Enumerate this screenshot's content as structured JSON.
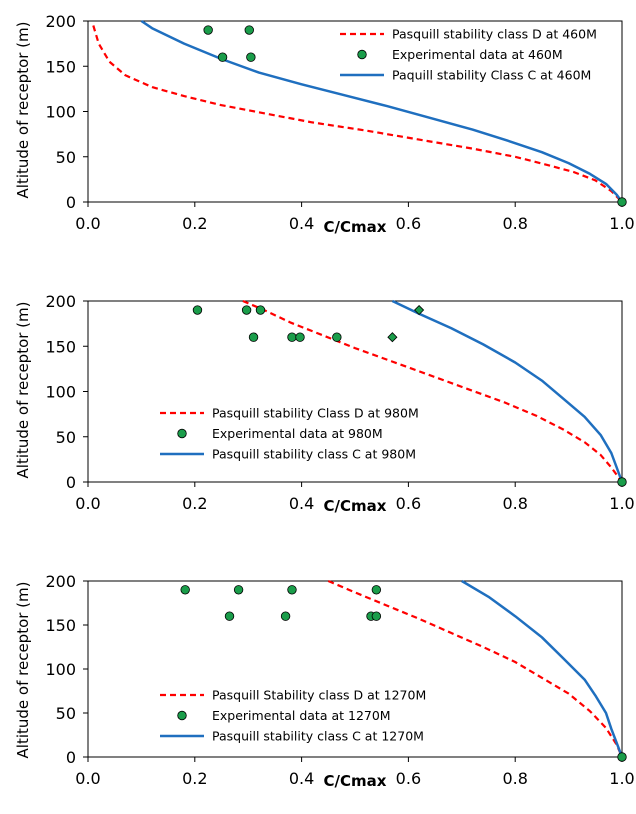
{
  "chart_data": [
    {
      "type": "line",
      "xlabel": "C/Cmax",
      "ylabel": "Altitude of receptor (m)",
      "xlim": [
        0.0,
        1.0
      ],
      "ylim": [
        0,
        200
      ],
      "xticks": [
        "0.0",
        "0.2",
        "0.4",
        "0.6",
        "0.8",
        "1.0"
      ],
      "yticks": [
        "0",
        "50",
        "100",
        "150",
        "200"
      ],
      "grid": false,
      "legend_position": "top-right",
      "series": [
        {
          "name": "Pasquill stability class D at 460M",
          "kind": "line",
          "color": "#ff0000",
          "dash": true,
          "x": [
            0.01,
            0.02,
            0.04,
            0.07,
            0.12,
            0.18,
            0.25,
            0.33,
            0.42,
            0.52,
            0.62,
            0.72,
            0.8,
            0.86,
            0.91,
            0.95,
            0.98,
            1.0
          ],
          "y": [
            195,
            175,
            155,
            140,
            127,
            117,
            107,
            98,
            88,
            79,
            69,
            59,
            50,
            41,
            33,
            24,
            12,
            0
          ]
        },
        {
          "name": "Experimental data at 460M",
          "kind": "scatter",
          "color": "#1a9d4a",
          "x": [
            0.225,
            0.302,
            0.252,
            0.305,
            1.0
          ],
          "y": [
            190,
            190,
            160,
            160,
            0
          ]
        },
        {
          "name": "Paquill stability Class C at 460M",
          "kind": "line",
          "color": "#1f6fbf",
          "dash": false,
          "x": [
            0.1,
            0.12,
            0.18,
            0.25,
            0.32,
            0.4,
            0.48,
            0.56,
            0.64,
            0.72,
            0.79,
            0.85,
            0.9,
            0.94,
            0.97,
            0.99,
            1.0
          ],
          "y": [
            200,
            192,
            175,
            158,
            143,
            130,
            118,
            106,
            93,
            80,
            67,
            55,
            43,
            31,
            20,
            8,
            0
          ]
        }
      ]
    },
    {
      "type": "line",
      "xlabel": "C/Cmax",
      "ylabel": "Altitude of receptor (m)",
      "xlim": [
        0.0,
        1.0
      ],
      "ylim": [
        0,
        200
      ],
      "xticks": [
        "0.0",
        "0.2",
        "0.4",
        "0.6",
        "0.8",
        "1.0"
      ],
      "yticks": [
        "0",
        "50",
        "100",
        "150",
        "200"
      ],
      "grid": false,
      "legend_position": "bottom-left",
      "series": [
        {
          "name": "Pasquill stability Class D at 980M",
          "kind": "line",
          "color": "#ff0000",
          "dash": true,
          "x": [
            0.29,
            0.33,
            0.38,
            0.44,
            0.5,
            0.57,
            0.64,
            0.71,
            0.78,
            0.84,
            0.89,
            0.93,
            0.96,
            0.98,
            0.99,
            1.0
          ],
          "y": [
            200,
            190,
            176,
            162,
            148,
            133,
            118,
            103,
            88,
            73,
            58,
            44,
            30,
            16,
            8,
            0
          ]
        },
        {
          "name": "Experimental data at 980M",
          "kind": "scatter",
          "color": "#1a9d4a",
          "x": [
            0.205,
            0.297,
            0.323,
            0.31,
            0.382,
            0.397,
            0.466,
            1.0
          ],
          "y": [
            190,
            190,
            190,
            160,
            160,
            160,
            160,
            0
          ]
        },
        {
          "name": "Experimental data at 980M (diamond)",
          "kind": "diamond",
          "color": "#1a9d4a",
          "x": [
            0.62,
            0.57
          ],
          "y": [
            190,
            160
          ]
        },
        {
          "name": "Pasquill stability class C at 980M",
          "kind": "line",
          "color": "#1f6fbf",
          "dash": false,
          "x": [
            0.57,
            0.62,
            0.68,
            0.74,
            0.8,
            0.85,
            0.89,
            0.93,
            0.96,
            0.98,
            0.99,
            1.0
          ],
          "y": [
            200,
            186,
            170,
            152,
            132,
            112,
            92,
            72,
            52,
            32,
            16,
            0
          ]
        }
      ]
    },
    {
      "type": "line",
      "xlabel": "C/Cmax",
      "ylabel": "Altitude of receptor (m)",
      "xlim": [
        0.0,
        1.0
      ],
      "ylim": [
        0,
        200
      ],
      "xticks": [
        "0.0",
        "0.2",
        "0.4",
        "0.6",
        "0.8",
        "1.0"
      ],
      "yticks": [
        "0",
        "50",
        "100",
        "150",
        "200"
      ],
      "grid": false,
      "legend_position": "bottom-left",
      "series": [
        {
          "name": "Pasquill Stability class D at 1270M",
          "kind": "line",
          "color": "#ff0000",
          "dash": true,
          "x": [
            0.45,
            0.5,
            0.56,
            0.62,
            0.68,
            0.74,
            0.8,
            0.85,
            0.9,
            0.94,
            0.97,
            0.99,
            1.0
          ],
          "y": [
            200,
            187,
            172,
            157,
            141,
            125,
            108,
            90,
            72,
            52,
            33,
            14,
            0
          ]
        },
        {
          "name": "Experimental data at 1270M",
          "kind": "scatter",
          "color": "#1a9d4a",
          "x": [
            0.182,
            0.282,
            0.382,
            0.54,
            0.265,
            0.37,
            0.53,
            0.54,
            1.0
          ],
          "y": [
            190,
            190,
            190,
            190,
            160,
            160,
            160,
            160,
            0
          ]
        },
        {
          "name": "Pasquill stability class C at 1270M",
          "kind": "line",
          "color": "#1f6fbf",
          "dash": false,
          "x": [
            0.7,
            0.75,
            0.8,
            0.85,
            0.89,
            0.93,
            0.95,
            0.97,
            0.98,
            0.99,
            1.0
          ],
          "y": [
            200,
            182,
            160,
            136,
            112,
            88,
            70,
            50,
            32,
            16,
            0
          ]
        }
      ]
    }
  ]
}
